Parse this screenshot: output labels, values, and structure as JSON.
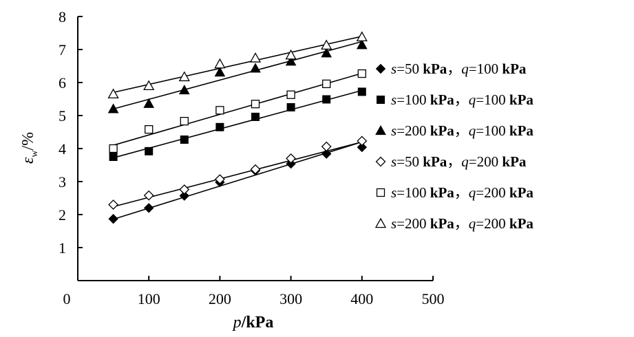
{
  "chart_data": {
    "type": "scatter",
    "title": "",
    "xlabel": {
      "var": "p",
      "unit": "/kPa"
    },
    "ylabel": {
      "symbol": "ε",
      "sub": "w",
      "unit": "/%"
    },
    "xlim": [
      0,
      500
    ],
    "ylim": [
      0,
      8
    ],
    "xticks": [
      0,
      100,
      200,
      300,
      400,
      500
    ],
    "yticks": [
      0,
      1,
      2,
      3,
      4,
      5,
      6,
      7,
      8
    ],
    "grid": false,
    "legend_position": "right",
    "x": [
      50,
      100,
      150,
      200,
      250,
      300,
      350,
      400
    ],
    "series": [
      {
        "name": "s=50 kPa，q=100 kPa",
        "s": "50",
        "q": "100",
        "marker": "diamond-filled",
        "values": [
          1.87,
          2.2,
          2.57,
          2.98,
          3.33,
          3.54,
          3.84,
          4.04
        ],
        "fit": [
          1.86,
          4.2
        ]
      },
      {
        "name": "s=100 kPa，q=100 kPa",
        "s": "100",
        "q": "100",
        "marker": "square-filled",
        "values": [
          3.75,
          3.92,
          4.27,
          4.65,
          4.96,
          5.25,
          5.49,
          5.72
        ],
        "fit": [
          3.72,
          5.76
        ]
      },
      {
        "name": "s=200 kPa，q=100 kPa",
        "s": "200",
        "q": "100",
        "marker": "triangle-filled",
        "values": [
          5.2,
          5.36,
          5.77,
          6.31,
          6.43,
          6.64,
          6.89,
          7.14
        ],
        "fit": [
          5.2,
          7.24
        ]
      },
      {
        "name": "s=50 kPa，q=200 kPa",
        "s": "50",
        "q": "200",
        "marker": "diamond-open",
        "values": [
          2.3,
          2.58,
          2.76,
          3.07,
          3.37,
          3.7,
          4.06,
          4.23
        ],
        "fit": [
          2.24,
          4.2
        ]
      },
      {
        "name": "s=100 kPa，q=200 kPa",
        "s": "100",
        "q": "200",
        "marker": "square-open",
        "values": [
          4.0,
          4.58,
          4.83,
          5.16,
          5.35,
          5.63,
          5.96,
          6.27
        ],
        "fit": [
          4.1,
          6.28
        ]
      },
      {
        "name": "s=200 kPa，q=200 kPa",
        "s": "200",
        "q": "200",
        "marker": "triangle-open",
        "values": [
          5.65,
          5.9,
          6.17,
          6.56,
          6.74,
          6.83,
          7.13,
          7.38
        ],
        "fit": [
          5.7,
          7.4
        ]
      }
    ],
    "legend_units": {
      "kpa": "kPa",
      "sep": "，"
    }
  }
}
